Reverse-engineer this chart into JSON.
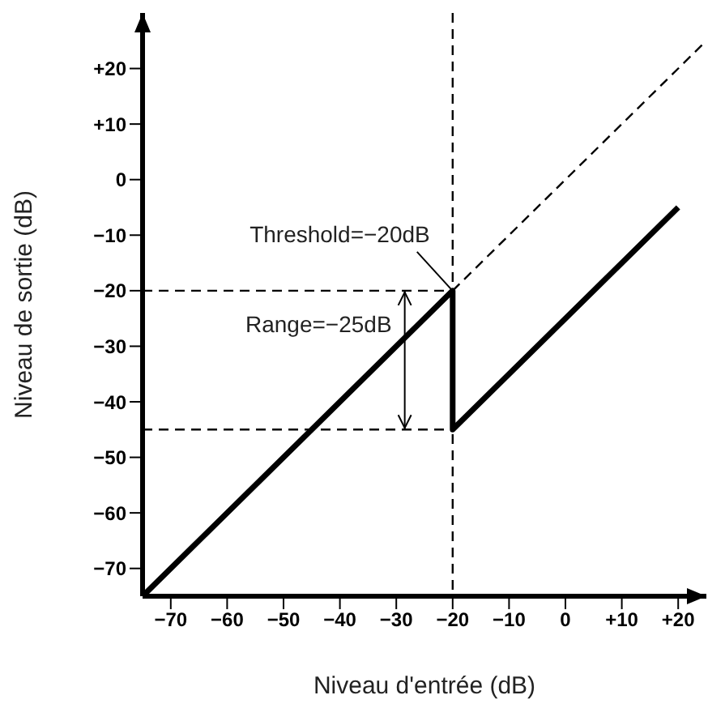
{
  "chart_data": {
    "type": "line",
    "xlabel": "Niveau d'entrée (dB)",
    "ylabel": "Niveau de sortie (dB)",
    "xlim": [
      -75,
      25
    ],
    "ylim": [
      -75,
      30
    ],
    "xticks": [
      {
        "value": -70,
        "label": "−70"
      },
      {
        "value": -60,
        "label": "−60"
      },
      {
        "value": -50,
        "label": "−50"
      },
      {
        "value": -40,
        "label": "−40"
      },
      {
        "value": -30,
        "label": "−30"
      },
      {
        "value": -20,
        "label": "−20"
      },
      {
        "value": -10,
        "label": "−10"
      },
      0,
      {
        "value": 10,
        "label": "+10"
      },
      {
        "value": 20,
        "label": "+20"
      }
    ],
    "yticks": [
      {
        "value": -70,
        "label": "−70"
      },
      {
        "value": -60,
        "label": "−60"
      },
      {
        "value": -50,
        "label": "−50"
      },
      {
        "value": -40,
        "label": "−40"
      },
      {
        "value": -30,
        "label": "−30"
      },
      {
        "value": -20,
        "label": "−20"
      },
      {
        "value": -10,
        "label": "−10"
      },
      0,
      {
        "value": 10,
        "label": "+10"
      },
      {
        "value": 20,
        "label": "+20"
      }
    ],
    "series": [
      {
        "color": "#000000",
        "line_style": "solid",
        "x": [
          -75,
          -20,
          -20,
          20
        ],
        "values": [
          -75,
          -20,
          -45,
          -5
        ]
      },
      {
        "color": "#000000",
        "line_style": "dashed",
        "x": [
          -20,
          25
        ],
        "values": [
          -20,
          25
        ]
      }
    ],
    "ref_lines": [
      {
        "axis": "x",
        "value": -20,
        "line_style": "dashed",
        "color": "#000000"
      },
      {
        "axis": "y",
        "value": -20,
        "line_style": "dashed",
        "color": "#000000"
      },
      {
        "axis": "y",
        "value": -45,
        "line_style": "dashed",
        "color": "#000000"
      }
    ],
    "annotations": [
      {
        "text": "Threshold=−20dB",
        "x": -20,
        "y": -20
      },
      {
        "text": "Range=−25dB",
        "x": -28.5,
        "y": -45
      }
    ],
    "marker": "none"
  }
}
